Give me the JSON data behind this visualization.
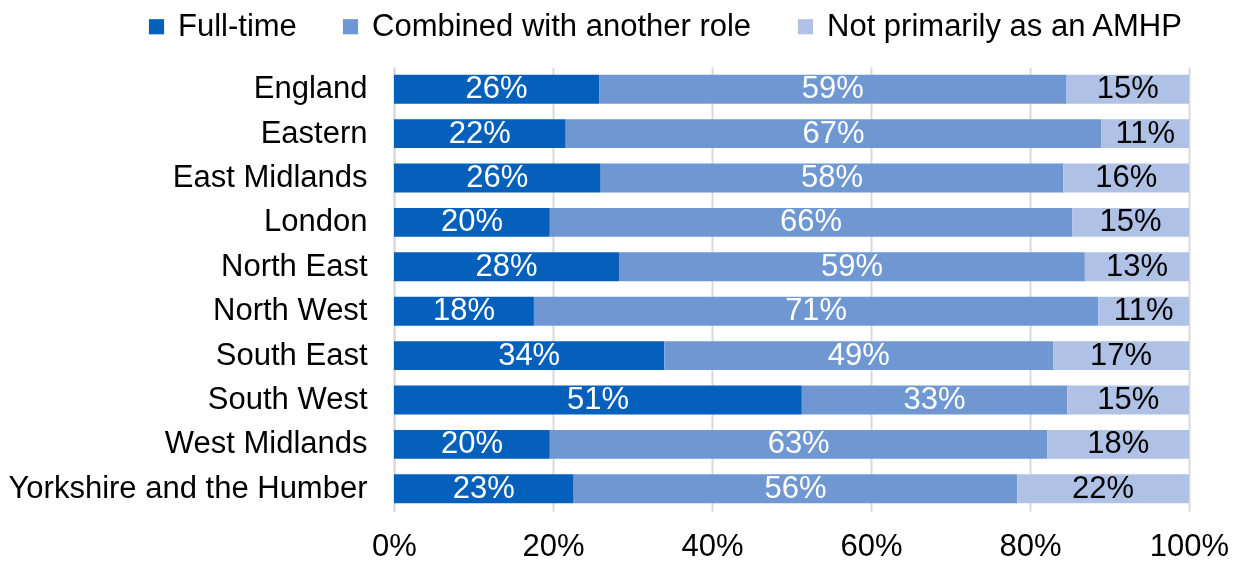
{
  "chart_data": {
    "type": "bar",
    "orientation": "horizontal",
    "stacked": true,
    "categories": [
      "England",
      "Eastern",
      "East Midlands",
      "London",
      "North East",
      "North West",
      "South East",
      "South West",
      "West Midlands",
      "Yorkshire and the Humber"
    ],
    "series": [
      {
        "name": "Full-time",
        "color": "#0560bb",
        "values": [
          25.8,
          21.6,
          26.0,
          19.6,
          28.3,
          17.6,
          34.0,
          51.3,
          19.6,
          22.6
        ],
        "value_labels": [
          "26%",
          "22%",
          "26%",
          "20%",
          "28%",
          "18%",
          "34%",
          "51%",
          "20%",
          "23%"
        ]
      },
      {
        "name": "Combined with another role",
        "color": "#6f98d2",
        "values": [
          58.8,
          67.4,
          58.2,
          65.7,
          58.6,
          71.0,
          48.9,
          33.4,
          62.6,
          55.8
        ],
        "value_labels": [
          "59%",
          "67%",
          "58%",
          "66%",
          "59%",
          "71%",
          "49%",
          "33%",
          "63%",
          "56%"
        ]
      },
      {
        "name": "Not primarily as an AMHP",
        "color": "#afc2e6",
        "values": [
          15.4,
          11.0,
          15.8,
          14.7,
          13.1,
          11.4,
          17.1,
          15.3,
          17.8,
          21.6
        ],
        "value_labels": [
          "15%",
          "11%",
          "16%",
          "15%",
          "13%",
          "11%",
          "17%",
          "15%",
          "18%",
          "22%"
        ]
      }
    ],
    "xlim": [
      0,
      100
    ],
    "xticks": [
      {
        "value": 0,
        "label": "0%"
      },
      {
        "value": 20,
        "label": "20%"
      },
      {
        "value": 40,
        "label": "40%"
      },
      {
        "value": 60,
        "label": "60%"
      },
      {
        "value": 80,
        "label": "80%"
      },
      {
        "value": 100,
        "label": "100%"
      }
    ],
    "grid": "x",
    "legend": "top"
  }
}
